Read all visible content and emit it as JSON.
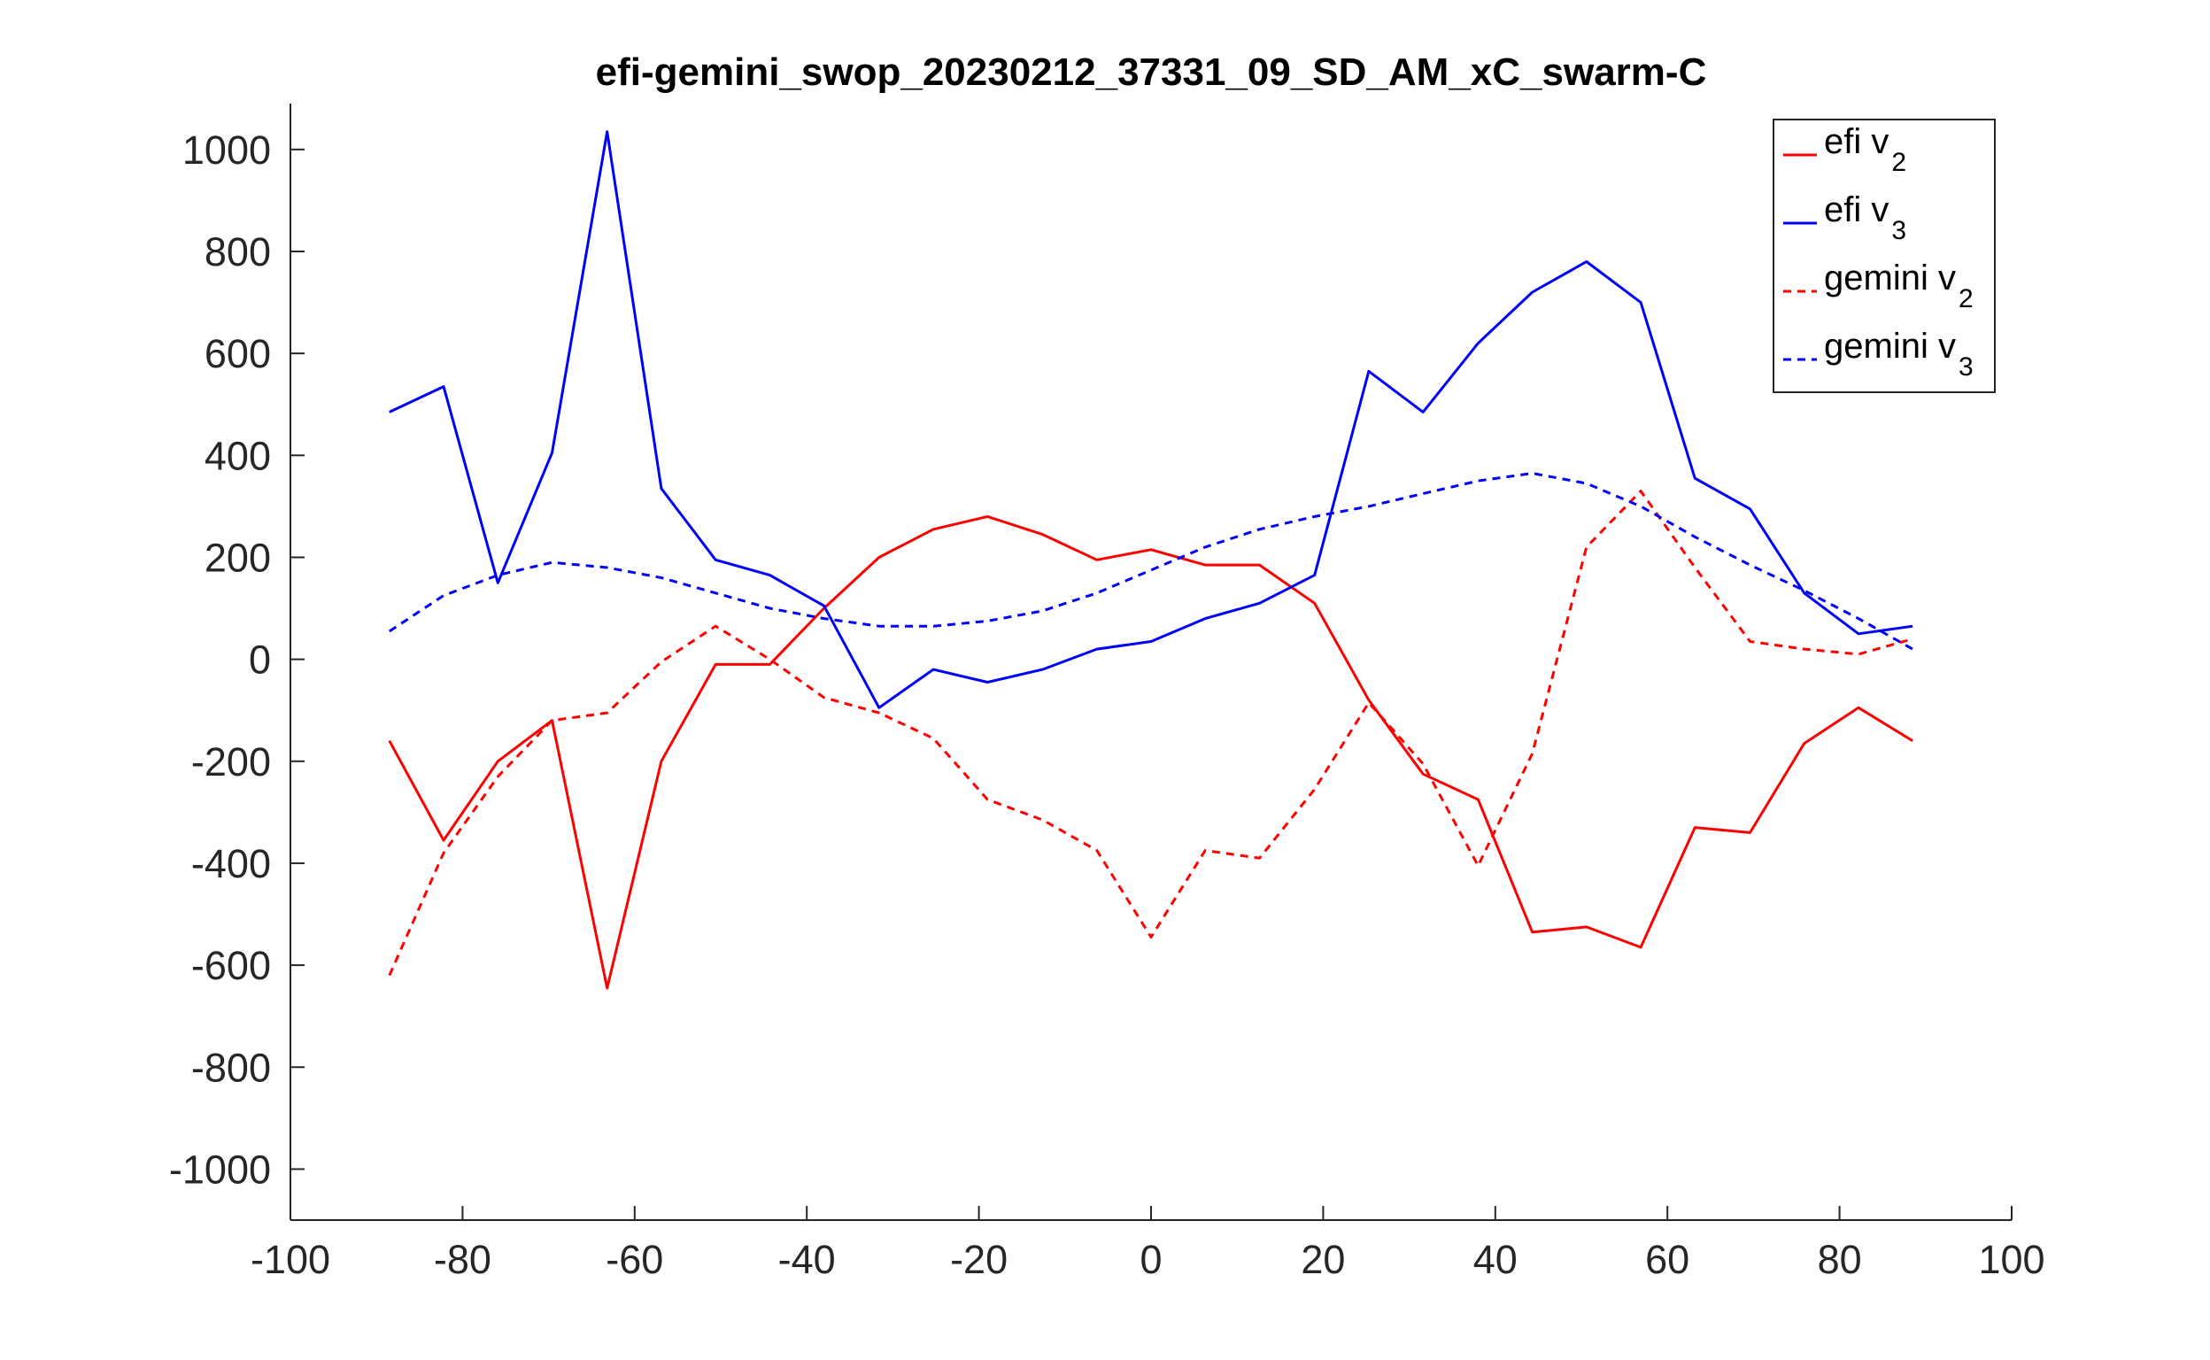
{
  "chart_data": {
    "type": "line",
    "title": "efi-gemini_swop_20230212_37331_09_SD_AM_xC_swarm-C",
    "xlabel": "",
    "ylabel": "",
    "xlim": [
      -100,
      100
    ],
    "ylim": [
      -1100,
      1090
    ],
    "x_ticks": [
      -100,
      -80,
      -60,
      -40,
      -20,
      0,
      20,
      40,
      60,
      80,
      100
    ],
    "y_ticks": [
      -1000,
      -800,
      -600,
      -400,
      -200,
      0,
      200,
      400,
      600,
      800,
      1000
    ],
    "grid": false,
    "legend_position": "top-right",
    "x": [
      -88.5,
      -82.2,
      -75.9,
      -69.6,
      -63.2,
      -56.9,
      -50.6,
      -44.3,
      -38,
      -31.6,
      -25.3,
      -19,
      -12.6,
      -6.3,
      0,
      6.3,
      12.6,
      19,
      25.3,
      31.6,
      38,
      44.3,
      50.6,
      56.9,
      63.2,
      69.6,
      75.9,
      82.2,
      88.5
    ],
    "series": [
      {
        "name": "efi v",
        "subscript": "2",
        "color": "#ff0000",
        "dash": "solid",
        "values": [
          -160,
          -355,
          -200,
          -120,
          -645,
          -200,
          -10,
          -10,
          100,
          200,
          255,
          280,
          245,
          195,
          215,
          185,
          185,
          110,
          -80,
          -225,
          -275,
          -535,
          -525,
          -565,
          -330,
          -340,
          -165,
          -95,
          -160
        ]
      },
      {
        "name": "efi v",
        "subscript": "3",
        "color": "#0000ff",
        "dash": "solid",
        "values": [
          485,
          535,
          150,
          405,
          1035,
          335,
          195,
          165,
          105,
          -95,
          -20,
          -45,
          -20,
          20,
          35,
          80,
          110,
          165,
          565,
          485,
          620,
          720,
          780,
          700,
          355,
          295,
          130,
          50,
          65
        ]
      },
      {
        "name": "gemini v",
        "subscript": "2",
        "color": "#ff0000",
        "dash": "dashed",
        "values": [
          -620,
          -380,
          -230,
          -120,
          -105,
          -5,
          65,
          0,
          -75,
          -105,
          -155,
          -275,
          -315,
          -375,
          -545,
          -375,
          -390,
          -255,
          -85,
          -205,
          -405,
          -185,
          220,
          330,
          180,
          35,
          20,
          10,
          40
        ]
      },
      {
        "name": "gemini v",
        "subscript": "3",
        "color": "#0000ff",
        "dash": "dashed",
        "values": [
          55,
          125,
          165,
          190,
          180,
          160,
          130,
          100,
          80,
          65,
          65,
          75,
          95,
          130,
          175,
          220,
          255,
          280,
          300,
          325,
          350,
          365,
          345,
          300,
          240,
          185,
          135,
          80,
          20
        ]
      }
    ]
  }
}
